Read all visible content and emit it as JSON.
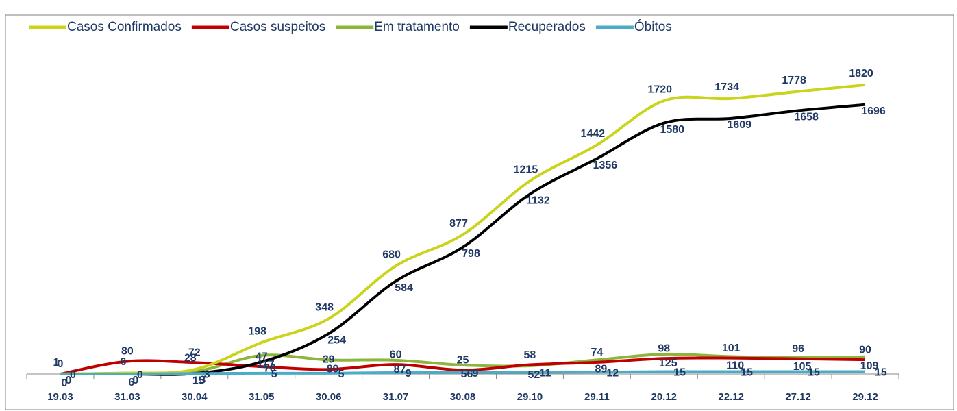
{
  "chart_data": {
    "type": "line",
    "categories": [
      "19.03",
      "31.03",
      "30.04",
      "31.05",
      "30.06",
      "31.07",
      "30.08",
      "29.10",
      "29.11",
      "20.12",
      "22.12",
      "27.12",
      "29.12"
    ],
    "series": [
      {
        "name": "Casos Confirmados",
        "color": "#c9d41a",
        "values": [
          1,
          6,
          28,
          198,
          348,
          680,
          877,
          1215,
          1442,
          1720,
          1734,
          1778,
          1820
        ]
      },
      {
        "name": "Casos suspeitos",
        "color": "#c00000",
        "values": [
          0,
          80,
          72,
          47,
          29,
          60,
          25,
          58,
          74,
          98,
          101,
          96,
          90
        ]
      },
      {
        "name": "Em tratamento",
        "color": "#8db53c",
        "values": [
          0,
          6,
          15,
          117,
          89,
          87,
          56,
          52,
          89,
          125,
          110,
          105,
          109
        ]
      },
      {
        "name": "Recuperados",
        "color": "#000000",
        "values": [
          0,
          0,
          3,
          76,
          254,
          584,
          798,
          1132,
          1356,
          1580,
          1609,
          1658,
          1696
        ]
      },
      {
        "name": "Óbitos",
        "color": "#4bacc6",
        "values": [
          0,
          0,
          3,
          5,
          5,
          9,
          9,
          11,
          12,
          15,
          15,
          15,
          15
        ]
      }
    ],
    "ylim": [
      0,
      2100
    ]
  }
}
